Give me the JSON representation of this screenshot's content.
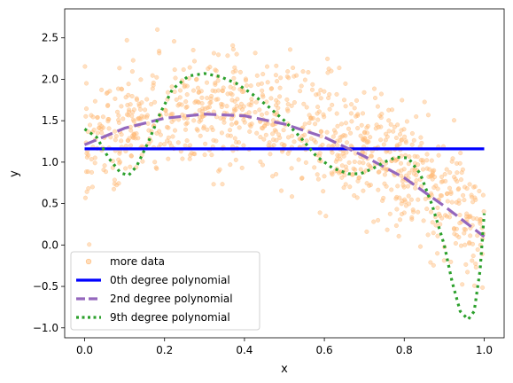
{
  "chart_data": {
    "type": "scatter",
    "title": "",
    "xlabel": "x",
    "ylabel": "y",
    "xlim": [
      -0.05,
      1.05
    ],
    "ylim": [
      -1.12,
      2.85
    ],
    "x_ticks": [
      "0.0",
      "0.2",
      "0.4",
      "0.6",
      "0.8",
      "1.0"
    ],
    "y_ticks": [
      "−1.0",
      "−0.5",
      "0.0",
      "0.5",
      "1.0",
      "1.5",
      "2.0",
      "2.5"
    ],
    "grid": false,
    "legend_position": "lower-left",
    "scatter": {
      "name": "more data",
      "color": "#ffbb78",
      "count": 1000,
      "description_model": "y ≈ 1.2 + 2.2x − 3.2x² + noise(σ≈0.35), x uniform in [0,1]"
    },
    "series": [
      {
        "name": "0th degree polynomial",
        "color": "#0000ff",
        "style": "solid",
        "x": [
          0.0,
          1.0
        ],
        "y": [
          1.16,
          1.16
        ]
      },
      {
        "name": "2nd degree polynomial",
        "color": "#9467bd",
        "style": "dashed",
        "x": [
          0.0,
          0.1,
          0.2,
          0.3,
          0.4,
          0.5,
          0.6,
          0.7,
          0.8,
          0.9,
          1.0
        ],
        "y": [
          1.21,
          1.41,
          1.53,
          1.58,
          1.56,
          1.46,
          1.3,
          1.07,
          0.81,
          0.47,
          0.1
        ]
      },
      {
        "name": "9th degree polynomial",
        "color": "#2ca02c",
        "style": "dotted",
        "x": [
          0.0,
          0.03,
          0.06,
          0.09,
          0.11,
          0.13,
          0.16,
          0.19,
          0.22,
          0.26,
          0.3,
          0.34,
          0.38,
          0.42,
          0.46,
          0.5,
          0.54,
          0.58,
          0.62,
          0.66,
          0.69,
          0.72,
          0.75,
          0.78,
          0.81,
          0.84,
          0.87,
          0.9,
          0.92,
          0.94,
          0.96,
          0.975,
          0.99,
          1.0
        ],
        "y": [
          1.4,
          1.3,
          1.05,
          0.87,
          0.84,
          0.95,
          1.25,
          1.6,
          1.88,
          2.04,
          2.07,
          2.03,
          1.95,
          1.82,
          1.67,
          1.5,
          1.3,
          1.07,
          0.93,
          0.86,
          0.86,
          0.92,
          1.0,
          1.06,
          1.05,
          0.86,
          0.48,
          0.0,
          -0.45,
          -0.8,
          -0.9,
          -0.8,
          -0.3,
          0.38
        ]
      }
    ]
  }
}
